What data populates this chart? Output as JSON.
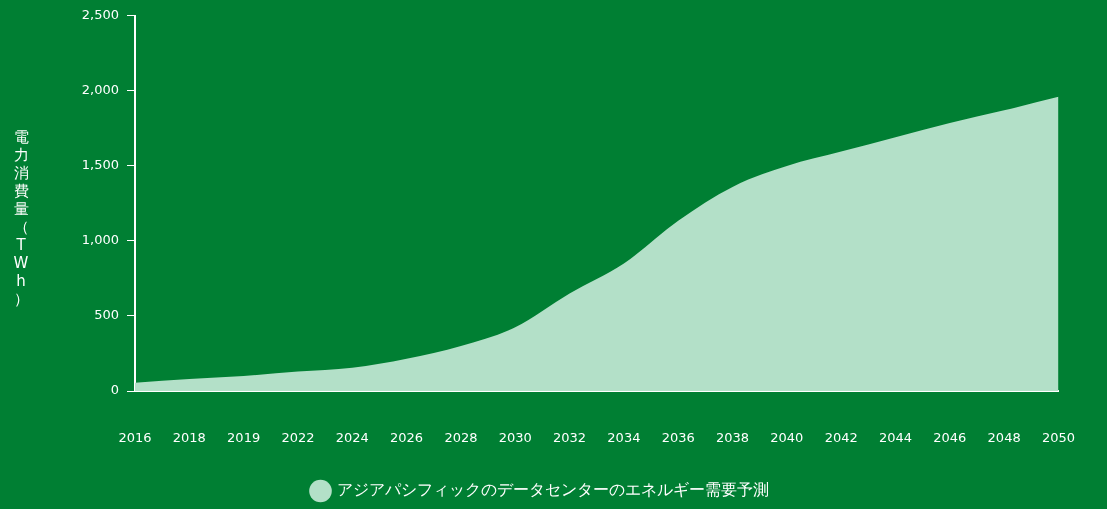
{
  "chart_data": {
    "type": "area",
    "ylabel": "電力消費量（TWh）",
    "categories": [
      "2016",
      "2018",
      "2019",
      "2022",
      "2024",
      "2026",
      "2028",
      "2030",
      "2032",
      "2034",
      "2036",
      "2038",
      "2040",
      "2042",
      "2044",
      "2046",
      "2048",
      "2050"
    ],
    "series": [
      {
        "name": "アジアパシフィックのデータセンターのエネルギー需要予測",
        "color": "#b3e0c8",
        "values": [
          55,
          80,
          100,
          130,
          155,
          215,
          300,
          425,
          650,
          850,
          1135,
          1360,
          1500,
          1595,
          1690,
          1785,
          1870,
          1960
        ]
      }
    ],
    "ylim": [
      0,
      2500
    ],
    "yticks": [
      0,
      500,
      {
        "value": 1000,
        "label": "1,000"
      },
      {
        "value": 1500,
        "label": "1,500"
      },
      {
        "value": 2000,
        "label": "2,000"
      },
      {
        "value": 2500,
        "label": "2,500"
      }
    ],
    "grid": false,
    "legend": "bottom",
    "marker": "none"
  }
}
